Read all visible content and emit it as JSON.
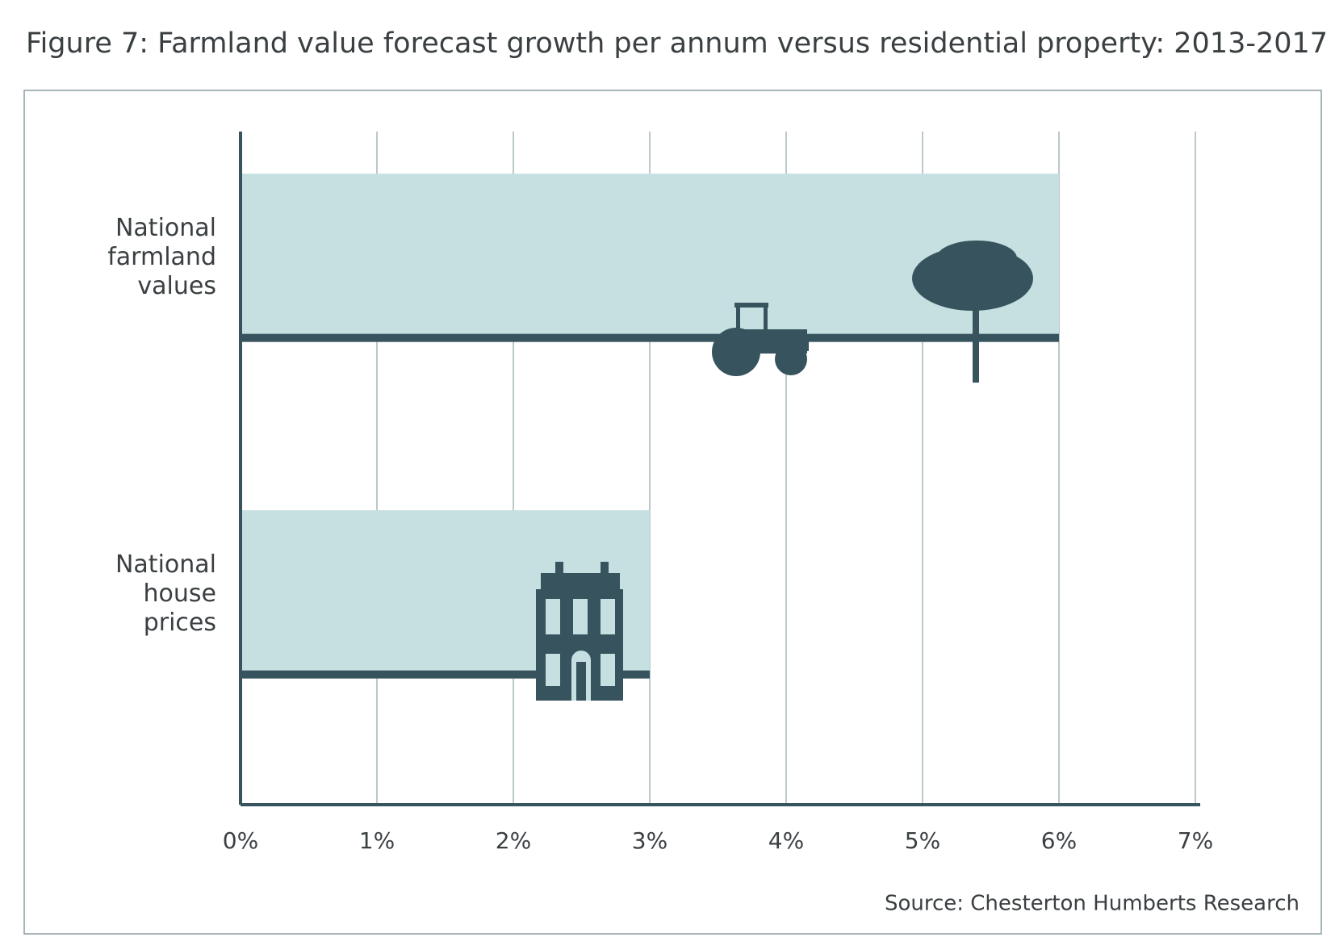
{
  "chart_data": {
    "type": "hbar",
    "title": "Figure 7: Farmland value forecast growth per annum versus residential property: 2013-2017",
    "categories": [
      "National farmland values",
      "National house prices"
    ],
    "values": [
      6,
      3
    ],
    "color": "#c6e0e2",
    "xlim": [
      0,
      7
    ],
    "xticks": [
      {
        "value": 0,
        "label": "0%"
      },
      {
        "value": 1,
        "label": "1%"
      },
      {
        "value": 2,
        "label": "2%"
      },
      {
        "value": 3,
        "label": "3%"
      },
      {
        "value": 4,
        "label": "4%"
      },
      {
        "value": 5,
        "label": "5%"
      },
      {
        "value": 6,
        "label": "6%"
      },
      {
        "value": 7,
        "label": "7%"
      }
    ],
    "grid": true,
    "source": "Source: Chesterton Humberts Research"
  }
}
